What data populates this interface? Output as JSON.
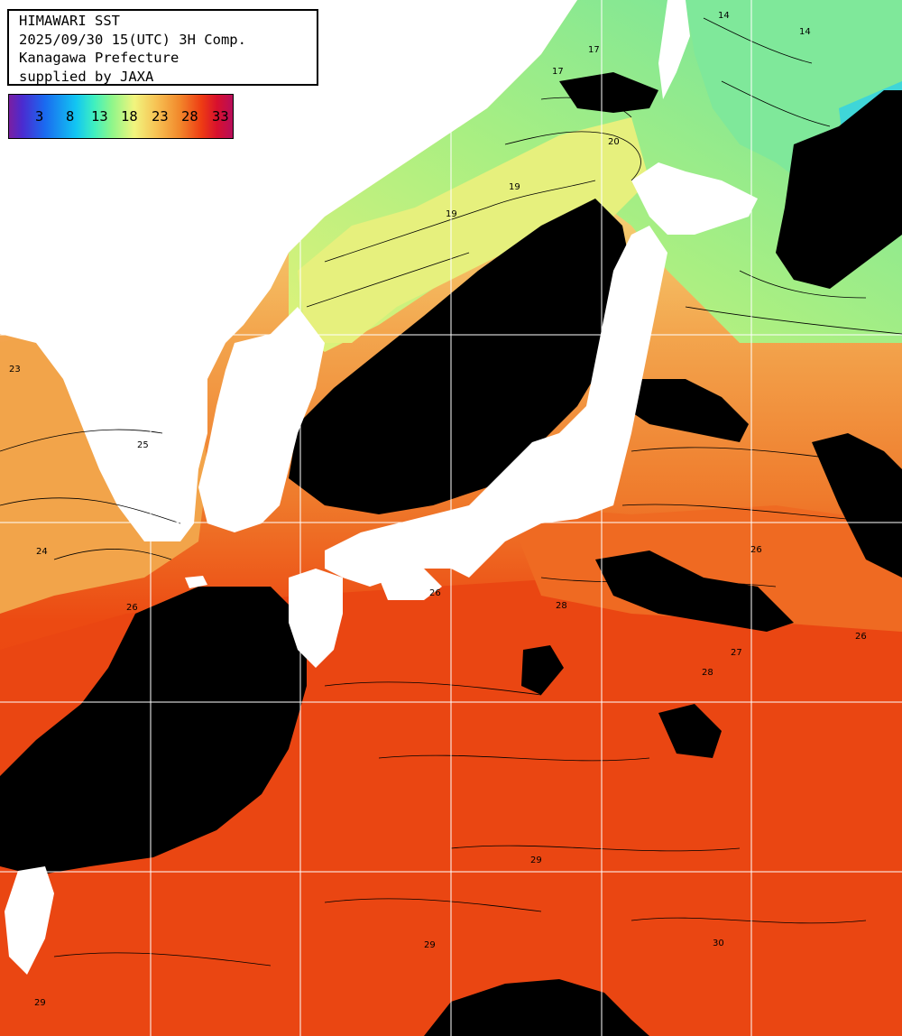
{
  "header": {
    "line1": "HIMAWARI SST",
    "line2": "2025/09/30 15(UTC) 3H Comp.",
    "line3": "Kanagawa Prefecture",
    "line4": "supplied by JAXA"
  },
  "legend": {
    "ticks": [
      "3",
      "8",
      "13",
      "18",
      "23",
      "28",
      "33"
    ]
  },
  "contour_labels": [
    "14",
    "14",
    "17",
    "17",
    "20",
    "19",
    "19",
    "23",
    "24",
    "25",
    "26",
    "26",
    "26",
    "26",
    "27",
    "28",
    "28",
    "29",
    "29",
    "29",
    "30"
  ],
  "colors": {
    "land": "#ffffff",
    "cloud": "#000000",
    "grid": "#ffffff",
    "sst_13": "#3cd8e8",
    "sst_16": "#7ee68a",
    "sst_19": "#d9f07a",
    "sst_22": "#f5d77a",
    "sst_24": "#f3a64e",
    "sst_26": "#ef7b2c",
    "sst_28": "#ec4a12",
    "sst_29": "#e93f10"
  }
}
